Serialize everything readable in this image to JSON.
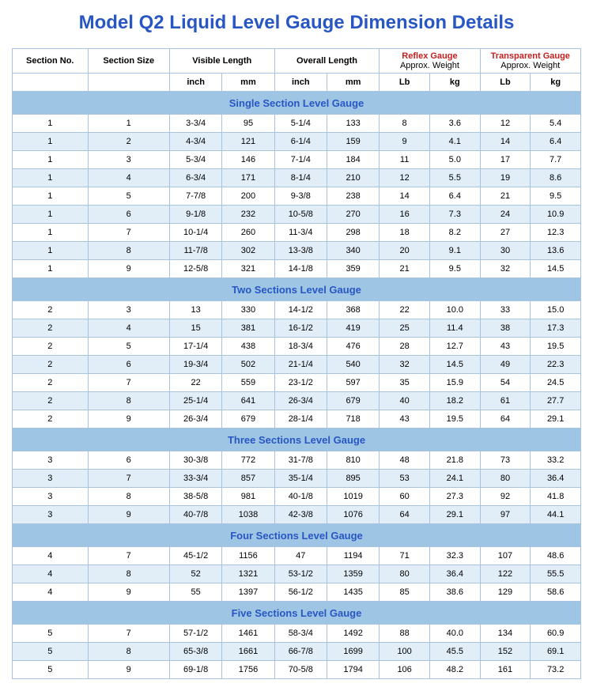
{
  "title": "Model Q2 Liquid Level Gauge Dimension Details",
  "headers": {
    "section_no": "Section No.",
    "section_size": "Section Size",
    "visible_length": "Visible Length",
    "overall_length": "Overall Length",
    "reflex_gauge": "Reflex Gauge",
    "reflex_sub": "Approx. Weight",
    "transparent_gauge": "Transparent Gauge",
    "transparent_sub": "Approx. Weight"
  },
  "units": {
    "inch": "inch",
    "mm": "mm",
    "lb": "Lb",
    "kg": "kg"
  },
  "sections": [
    {
      "title": "Single Section Level Gauge",
      "rows": [
        [
          "1",
          "1",
          "3-3/4",
          "95",
          "5-1/4",
          "133",
          "8",
          "3.6",
          "12",
          "5.4"
        ],
        [
          "1",
          "2",
          "4-3/4",
          "121",
          "6-1/4",
          "159",
          "9",
          "4.1",
          "14",
          "6.4"
        ],
        [
          "1",
          "3",
          "5-3/4",
          "146",
          "7-1/4",
          "184",
          "11",
          "5.0",
          "17",
          "7.7"
        ],
        [
          "1",
          "4",
          "6-3/4",
          "171",
          "8-1/4",
          "210",
          "12",
          "5.5",
          "19",
          "8.6"
        ],
        [
          "1",
          "5",
          "7-7/8",
          "200",
          "9-3/8",
          "238",
          "14",
          "6.4",
          "21",
          "9.5"
        ],
        [
          "1",
          "6",
          "9-1/8",
          "232",
          "10-5/8",
          "270",
          "16",
          "7.3",
          "24",
          "10.9"
        ],
        [
          "1",
          "7",
          "10-1/4",
          "260",
          "11-3/4",
          "298",
          "18",
          "8.2",
          "27",
          "12.3"
        ],
        [
          "1",
          "8",
          "11-7/8",
          "302",
          "13-3/8",
          "340",
          "20",
          "9.1",
          "30",
          "13.6"
        ],
        [
          "1",
          "9",
          "12-5/8",
          "321",
          "14-1/8",
          "359",
          "21",
          "9.5",
          "32",
          "14.5"
        ]
      ]
    },
    {
      "title": "Two Sections Level Gauge",
      "rows": [
        [
          "2",
          "3",
          "13",
          "330",
          "14-1/2",
          "368",
          "22",
          "10.0",
          "33",
          "15.0"
        ],
        [
          "2",
          "4",
          "15",
          "381",
          "16-1/2",
          "419",
          "25",
          "11.4",
          "38",
          "17.3"
        ],
        [
          "2",
          "5",
          "17-1/4",
          "438",
          "18-3/4",
          "476",
          "28",
          "12.7",
          "43",
          "19.5"
        ],
        [
          "2",
          "6",
          "19-3/4",
          "502",
          "21-1/4",
          "540",
          "32",
          "14.5",
          "49",
          "22.3"
        ],
        [
          "2",
          "7",
          "22",
          "559",
          "23-1/2",
          "597",
          "35",
          "15.9",
          "54",
          "24.5"
        ],
        [
          "2",
          "8",
          "25-1/4",
          "641",
          "26-3/4",
          "679",
          "40",
          "18.2",
          "61",
          "27.7"
        ],
        [
          "2",
          "9",
          "26-3/4",
          "679",
          "28-1/4",
          "718",
          "43",
          "19.5",
          "64",
          "29.1"
        ]
      ]
    },
    {
      "title": "Three Sections Level Gauge",
      "rows": [
        [
          "3",
          "6",
          "30-3/8",
          "772",
          "31-7/8",
          "810",
          "48",
          "21.8",
          "73",
          "33.2"
        ],
        [
          "3",
          "7",
          "33-3/4",
          "857",
          "35-1/4",
          "895",
          "53",
          "24.1",
          "80",
          "36.4"
        ],
        [
          "3",
          "8",
          "38-5/8",
          "981",
          "40-1/8",
          "1019",
          "60",
          "27.3",
          "92",
          "41.8"
        ],
        [
          "3",
          "9",
          "40-7/8",
          "1038",
          "42-3/8",
          "1076",
          "64",
          "29.1",
          "97",
          "44.1"
        ]
      ]
    },
    {
      "title": "Four Sections Level Gauge",
      "rows": [
        [
          "4",
          "7",
          "45-1/2",
          "1156",
          "47",
          "1194",
          "71",
          "32.3",
          "107",
          "48.6"
        ],
        [
          "4",
          "8",
          "52",
          "1321",
          "53-1/2",
          "1359",
          "80",
          "36.4",
          "122",
          "55.5"
        ],
        [
          "4",
          "9",
          "55",
          "1397",
          "56-1/2",
          "1435",
          "85",
          "38.6",
          "129",
          "58.6"
        ]
      ]
    },
    {
      "title": "Five Sections Level Gauge",
      "rows": [
        [
          "5",
          "7",
          "57-1/2",
          "1461",
          "58-3/4",
          "1492",
          "88",
          "40.0",
          "134",
          "60.9"
        ],
        [
          "5",
          "8",
          "65-3/8",
          "1661",
          "66-7/8",
          "1699",
          "100",
          "45.5",
          "152",
          "69.1"
        ],
        [
          "5",
          "9",
          "69-1/8",
          "1756",
          "70-5/8",
          "1794",
          "106",
          "48.2",
          "161",
          "73.2"
        ]
      ]
    }
  ],
  "col_widths": [
    "72",
    "78",
    "50",
    "50",
    "50",
    "50",
    "48",
    "48",
    "48",
    "48"
  ]
}
